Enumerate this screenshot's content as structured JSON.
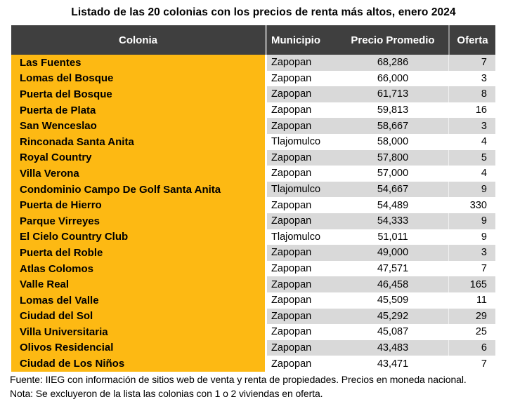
{
  "title": "Listado de las 20 colonias con los precios de renta más altos, enero 2024",
  "colors": {
    "accent_orange": "#FDB913",
    "header_bg": "#3F3F3F",
    "header_text": "#FFFFFF",
    "row_shaded": "#D9D9D9",
    "row_plain": "#FFFFFF",
    "text": "#000000"
  },
  "table": {
    "columns": [
      "Colonia",
      "Municipio",
      "Precio Promedio",
      "Oferta"
    ],
    "rows": [
      {
        "colonia": "Las Fuentes",
        "municipio": "Zapopan",
        "precio": "68,286",
        "oferta": "7"
      },
      {
        "colonia": "Lomas del Bosque",
        "municipio": "Zapopan",
        "precio": "66,000",
        "oferta": "3"
      },
      {
        "colonia": "Puerta del Bosque",
        "municipio": "Zapopan",
        "precio": "61,713",
        "oferta": "8"
      },
      {
        "colonia": "Puerta de Plata",
        "municipio": "Zapopan",
        "precio": "59,813",
        "oferta": "16"
      },
      {
        "colonia": "San Wenceslao",
        "municipio": "Zapopan",
        "precio": "58,667",
        "oferta": "3"
      },
      {
        "colonia": "Rinconada Santa Anita",
        "municipio": "Tlajomulco",
        "precio": "58,000",
        "oferta": "4"
      },
      {
        "colonia": "Royal Country",
        "municipio": "Zapopan",
        "precio": "57,800",
        "oferta": "5"
      },
      {
        "colonia": "Villa Verona",
        "municipio": "Zapopan",
        "precio": "57,000",
        "oferta": "4"
      },
      {
        "colonia": "Condominio Campo De Golf Santa Anita",
        "municipio": "Tlajomulco",
        "precio": "54,667",
        "oferta": "9"
      },
      {
        "colonia": "Puerta de Hierro",
        "municipio": "Zapopan",
        "precio": "54,489",
        "oferta": "330"
      },
      {
        "colonia": "Parque Virreyes",
        "municipio": "Zapopan",
        "precio": "54,333",
        "oferta": "9"
      },
      {
        "colonia": "El Cielo Country Club",
        "municipio": "Tlajomulco",
        "precio": "51,011",
        "oferta": "9"
      },
      {
        "colonia": "Puerta del Roble",
        "municipio": "Zapopan",
        "precio": "49,000",
        "oferta": "3"
      },
      {
        "colonia": "Atlas Colomos",
        "municipio": "Zapopan",
        "precio": "47,571",
        "oferta": "7"
      },
      {
        "colonia": "Valle Real",
        "municipio": "Zapopan",
        "precio": "46,458",
        "oferta": "165"
      },
      {
        "colonia": "Lomas del Valle",
        "municipio": "Zapopan",
        "precio": "45,509",
        "oferta": "11"
      },
      {
        "colonia": "Ciudad del Sol",
        "municipio": "Zapopan",
        "precio": "45,292",
        "oferta": "29"
      },
      {
        "colonia": "Villa Universitaria",
        "municipio": "Zapopan",
        "precio": "45,087",
        "oferta": "25"
      },
      {
        "colonia": "Olivos Residencial",
        "municipio": "Zapopan",
        "precio": "43,483",
        "oferta": "6"
      },
      {
        "colonia": "Ciudad de Los Niños",
        "municipio": "Zapopan",
        "precio": "43,471",
        "oferta": "7"
      }
    ]
  },
  "footer": {
    "fuente": "Fuente: IIEG con información de sitios web de venta y renta de propiedades. Precios en moneda nacional.",
    "nota": "Nota: Se excluyeron de la lista las colonias con 1 o 2 viviendas en oferta."
  },
  "chart_data": {
    "type": "table",
    "title": "Listado de las 20 colonias con los precios de renta más altos, enero 2024",
    "columns": [
      "Colonia",
      "Municipio",
      "Precio Promedio",
      "Oferta"
    ],
    "rows": [
      [
        "Las Fuentes",
        "Zapopan",
        68286,
        7
      ],
      [
        "Lomas del Bosque",
        "Zapopan",
        66000,
        3
      ],
      [
        "Puerta del Bosque",
        "Zapopan",
        61713,
        8
      ],
      [
        "Puerta de Plata",
        "Zapopan",
        59813,
        16
      ],
      [
        "San Wenceslao",
        "Zapopan",
        58667,
        3
      ],
      [
        "Rinconada Santa Anita",
        "Tlajomulco",
        58000,
        4
      ],
      [
        "Royal Country",
        "Zapopan",
        57800,
        5
      ],
      [
        "Villa Verona",
        "Zapopan",
        57000,
        4
      ],
      [
        "Condominio Campo De Golf Santa Anita",
        "Tlajomulco",
        54667,
        9
      ],
      [
        "Puerta de Hierro",
        "Zapopan",
        54489,
        330
      ],
      [
        "Parque Virreyes",
        "Zapopan",
        54333,
        9
      ],
      [
        "El Cielo Country Club",
        "Tlajomulco",
        51011,
        9
      ],
      [
        "Puerta del Roble",
        "Zapopan",
        49000,
        3
      ],
      [
        "Atlas Colomos",
        "Zapopan",
        47571,
        7
      ],
      [
        "Valle Real",
        "Zapopan",
        46458,
        165
      ],
      [
        "Lomas del Valle",
        "Zapopan",
        45509,
        11
      ],
      [
        "Ciudad del Sol",
        "Zapopan",
        45292,
        29
      ],
      [
        "Villa Universitaria",
        "Zapopan",
        45087,
        25
      ],
      [
        "Olivos Residencial",
        "Zapopan",
        43483,
        6
      ],
      [
        "Ciudad de Los Niños",
        "Zapopan",
        43471,
        7
      ]
    ],
    "notes": [
      "Fuente: IIEG con información de sitios web de venta y renta de propiedades. Precios en moneda nacional.",
      "Nota: Se excluyeron de la lista las colonias con 1 o 2 viviendas en oferta."
    ]
  }
}
